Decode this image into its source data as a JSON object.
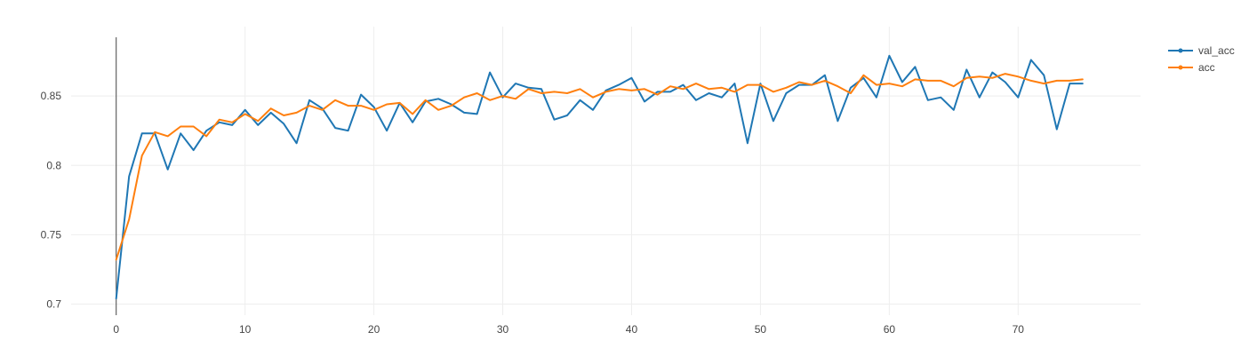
{
  "chart_data": {
    "type": "line",
    "title": "",
    "xlabel": "",
    "ylabel": "",
    "xlim": [
      -3.5,
      79.5
    ],
    "ylim": [
      0.692,
      0.9
    ],
    "x_ticks": [
      0,
      10,
      20,
      30,
      40,
      50,
      60,
      70
    ],
    "y_ticks": [
      0.7,
      0.75,
      0.8,
      0.85
    ],
    "y_tick_labels": [
      "0.7",
      "0.75",
      "0.8",
      "0.85"
    ],
    "grid": true,
    "legend_position": "top-right",
    "series": [
      {
        "name": "val_acc",
        "color": "#1f77b4",
        "x": [
          0,
          1,
          2,
          3,
          4,
          5,
          6,
          7,
          8,
          9,
          10,
          11,
          12,
          13,
          14,
          15,
          16,
          17,
          18,
          19,
          20,
          21,
          22,
          23,
          24,
          25,
          26,
          27,
          28,
          29,
          30,
          31,
          32,
          33,
          34,
          35,
          36,
          37,
          38,
          39,
          40,
          41,
          42,
          43,
          44,
          45,
          46,
          47,
          48,
          49,
          50,
          51,
          52,
          53,
          54,
          55,
          56,
          57,
          58,
          59,
          60,
          61,
          62,
          63,
          64,
          65,
          66,
          67,
          68,
          69,
          70,
          71,
          72,
          73,
          74,
          75
        ],
        "values": [
          0.704,
          0.792,
          0.823,
          0.823,
          0.797,
          0.823,
          0.811,
          0.825,
          0.831,
          0.829,
          0.84,
          0.829,
          0.838,
          0.83,
          0.816,
          0.847,
          0.841,
          0.827,
          0.825,
          0.851,
          0.842,
          0.825,
          0.845,
          0.831,
          0.846,
          0.848,
          0.844,
          0.838,
          0.837,
          0.867,
          0.849,
          0.859,
          0.856,
          0.855,
          0.833,
          0.836,
          0.847,
          0.84,
          0.854,
          0.858,
          0.863,
          0.846,
          0.853,
          0.853,
          0.858,
          0.847,
          0.852,
          0.849,
          0.859,
          0.816,
          0.859,
          0.832,
          0.852,
          0.858,
          0.858,
          0.865,
          0.832,
          0.856,
          0.863,
          0.849,
          0.879,
          0.86,
          0.871,
          0.847,
          0.849,
          0.84,
          0.869,
          0.849,
          0.867,
          0.86,
          0.849,
          0.876,
          0.865,
          0.826,
          0.859,
          0.859
        ]
      },
      {
        "name": "acc",
        "color": "#ff7f0e",
        "x": [
          0,
          1,
          2,
          3,
          4,
          5,
          6,
          7,
          8,
          9,
          10,
          11,
          12,
          13,
          14,
          15,
          16,
          17,
          18,
          19,
          20,
          21,
          22,
          23,
          24,
          25,
          26,
          27,
          28,
          29,
          30,
          31,
          32,
          33,
          34,
          35,
          36,
          37,
          38,
          39,
          40,
          41,
          42,
          43,
          44,
          45,
          46,
          47,
          48,
          49,
          50,
          51,
          52,
          53,
          54,
          55,
          56,
          57,
          58,
          59,
          60,
          61,
          62,
          63,
          64,
          65,
          66,
          67,
          68,
          69,
          70,
          71,
          72,
          73,
          74,
          75
        ],
        "values": [
          0.732,
          0.761,
          0.807,
          0.824,
          0.821,
          0.828,
          0.828,
          0.821,
          0.833,
          0.831,
          0.837,
          0.832,
          0.841,
          0.836,
          0.838,
          0.843,
          0.84,
          0.847,
          0.843,
          0.843,
          0.84,
          0.844,
          0.845,
          0.837,
          0.847,
          0.84,
          0.843,
          0.849,
          0.852,
          0.847,
          0.85,
          0.848,
          0.855,
          0.852,
          0.853,
          0.852,
          0.855,
          0.849,
          0.853,
          0.855,
          0.854,
          0.855,
          0.851,
          0.857,
          0.855,
          0.859,
          0.855,
          0.856,
          0.853,
          0.858,
          0.858,
          0.853,
          0.856,
          0.86,
          0.858,
          0.861,
          0.857,
          0.852,
          0.865,
          0.858,
          0.859,
          0.857,
          0.862,
          0.861,
          0.861,
          0.857,
          0.863,
          0.864,
          0.863,
          0.866,
          0.864,
          0.861,
          0.859,
          0.861,
          0.861,
          0.862
        ]
      }
    ]
  }
}
